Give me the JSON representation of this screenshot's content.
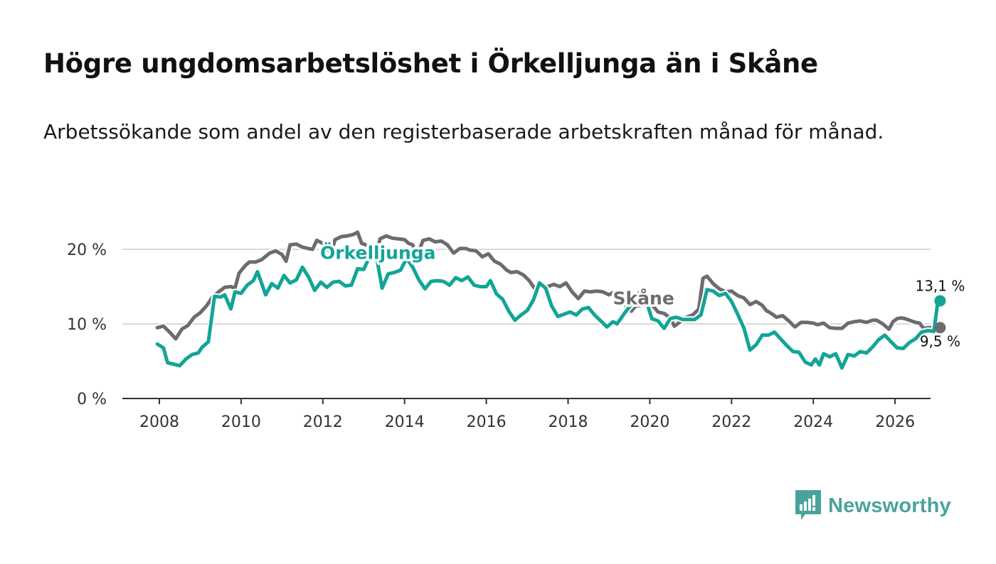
{
  "title": "Högre ungdomsarbetslöshet i Örkelljunga än i Skåne",
  "subtitle": "Arbetssökande som andel av den registerbaserade arbetskraften månad för månad.",
  "brand": {
    "name": "Newsworthy",
    "icon": "newsworthy-logo-icon",
    "color": "#4aa39a"
  },
  "colors": {
    "orkelljunga": "#12a597",
    "skane": "#6d6b6e",
    "grid": "#d9d9d9",
    "axis": "#333333"
  },
  "chart_data": {
    "type": "line",
    "title": "Högre ungdomsarbetslöshet i Örkelljunga än i Skåne",
    "xlabel": "",
    "ylabel": "",
    "xlim": [
      2007.6,
      2026.9
    ],
    "ylim": [
      0,
      22
    ],
    "x_ticks": [
      2008,
      2010,
      2012,
      2014,
      2016,
      2018,
      2020,
      2022,
      2024,
      2026
    ],
    "x_tick_labels": [
      "2008",
      "2010",
      "2012",
      "2014",
      "2016",
      "2018",
      "2020",
      "2022",
      "2024",
      "2026"
    ],
    "y_ticks": [
      0,
      10,
      20
    ],
    "y_tick_labels": [
      "0 %",
      "10 %",
      "20 %"
    ],
    "grid": true,
    "series": [
      {
        "name": "Skåne",
        "label": "Skåne",
        "color": "#6d6b6e",
        "end_label": "9,5 %",
        "points": [
          [
            2007.95,
            9.5
          ],
          [
            2008.1,
            9.7
          ],
          [
            2008.25,
            8.9
          ],
          [
            2008.4,
            8.0
          ],
          [
            2008.55,
            9.3
          ],
          [
            2008.7,
            9.8
          ],
          [
            2008.85,
            10.9
          ],
          [
            2009.0,
            11.5
          ],
          [
            2009.15,
            12.4
          ],
          [
            2009.3,
            13.6
          ],
          [
            2009.45,
            14.3
          ],
          [
            2009.6,
            14.9
          ],
          [
            2009.75,
            15.0
          ],
          [
            2009.85,
            14.8
          ],
          [
            2009.95,
            16.8
          ],
          [
            2010.1,
            17.8
          ],
          [
            2010.2,
            18.3
          ],
          [
            2010.35,
            18.3
          ],
          [
            2010.5,
            18.6
          ],
          [
            2010.7,
            19.5
          ],
          [
            2010.85,
            19.8
          ],
          [
            2011.0,
            19.3
          ],
          [
            2011.1,
            18.4
          ],
          [
            2011.2,
            20.6
          ],
          [
            2011.35,
            20.7
          ],
          [
            2011.5,
            20.3
          ],
          [
            2011.65,
            20.1
          ],
          [
            2011.75,
            20.0
          ],
          [
            2011.85,
            21.2
          ],
          [
            2012.0,
            20.8
          ],
          [
            2012.1,
            20.2
          ],
          [
            2012.2,
            19.5
          ],
          [
            2012.3,
            21.3
          ],
          [
            2012.45,
            21.7
          ],
          [
            2012.6,
            21.8
          ],
          [
            2012.75,
            22.0
          ],
          [
            2012.85,
            22.3
          ],
          [
            2012.95,
            20.8
          ],
          [
            2013.1,
            20.5
          ],
          [
            2013.2,
            19.8
          ],
          [
            2013.3,
            19.2
          ],
          [
            2013.4,
            21.4
          ],
          [
            2013.55,
            21.8
          ],
          [
            2013.7,
            21.5
          ],
          [
            2013.85,
            21.4
          ],
          [
            2014.0,
            21.3
          ],
          [
            2014.1,
            20.8
          ],
          [
            2014.2,
            20.6
          ],
          [
            2014.3,
            19.0
          ],
          [
            2014.45,
            21.2
          ],
          [
            2014.6,
            21.4
          ],
          [
            2014.75,
            21.0
          ],
          [
            2014.9,
            21.1
          ],
          [
            2015.05,
            20.6
          ],
          [
            2015.2,
            19.5
          ],
          [
            2015.35,
            20.1
          ],
          [
            2015.5,
            20.1
          ],
          [
            2015.6,
            19.9
          ],
          [
            2015.75,
            19.8
          ],
          [
            2015.9,
            19.0
          ],
          [
            2016.05,
            19.4
          ],
          [
            2016.2,
            18.4
          ],
          [
            2016.35,
            18.0
          ],
          [
            2016.5,
            17.2
          ],
          [
            2016.6,
            16.9
          ],
          [
            2016.75,
            17.0
          ],
          [
            2016.9,
            16.6
          ],
          [
            2017.05,
            15.8
          ],
          [
            2017.2,
            14.6
          ],
          [
            2017.35,
            15.2
          ],
          [
            2017.5,
            15.0
          ],
          [
            2017.65,
            15.3
          ],
          [
            2017.8,
            15.0
          ],
          [
            2017.95,
            15.5
          ],
          [
            2018.1,
            14.3
          ],
          [
            2018.25,
            13.4
          ],
          [
            2018.4,
            14.4
          ],
          [
            2018.55,
            14.3
          ],
          [
            2018.7,
            14.4
          ],
          [
            2018.85,
            14.3
          ],
          [
            2019.0,
            13.9
          ],
          [
            2019.1,
            14.2
          ],
          [
            2019.25,
            13.3
          ],
          [
            2019.4,
            12.6
          ],
          [
            2019.55,
            11.7
          ],
          [
            2019.65,
            12.4
          ],
          [
            2019.8,
            12.5
          ],
          [
            2019.95,
            12.6
          ],
          [
            2020.1,
            12.3
          ],
          [
            2020.2,
            11.6
          ],
          [
            2020.35,
            11.4
          ],
          [
            2020.5,
            10.8
          ],
          [
            2020.6,
            9.7
          ],
          [
            2020.75,
            10.3
          ],
          [
            2020.9,
            10.9
          ],
          [
            2021.05,
            11.2
          ],
          [
            2021.2,
            12.0
          ],
          [
            2021.3,
            16.1
          ],
          [
            2021.4,
            16.4
          ],
          [
            2021.55,
            15.4
          ],
          [
            2021.7,
            14.7
          ],
          [
            2021.85,
            14.3
          ],
          [
            2022.0,
            14.4
          ],
          [
            2022.15,
            13.8
          ],
          [
            2022.3,
            13.5
          ],
          [
            2022.45,
            12.6
          ],
          [
            2022.6,
            13.0
          ],
          [
            2022.75,
            12.5
          ],
          [
            2022.85,
            11.8
          ],
          [
            2023.0,
            11.3
          ],
          [
            2023.1,
            10.9
          ],
          [
            2023.25,
            11.1
          ],
          [
            2023.4,
            10.4
          ],
          [
            2023.55,
            9.6
          ],
          [
            2023.7,
            10.2
          ],
          [
            2023.85,
            10.2
          ],
          [
            2024.0,
            10.1
          ],
          [
            2024.1,
            9.9
          ],
          [
            2024.25,
            10.1
          ],
          [
            2024.4,
            9.5
          ],
          [
            2024.55,
            9.4
          ],
          [
            2024.7,
            9.4
          ],
          [
            2024.85,
            10.1
          ],
          [
            2025.0,
            10.3
          ],
          [
            2025.15,
            10.4
          ],
          [
            2025.3,
            10.2
          ],
          [
            2025.45,
            10.5
          ],
          [
            2025.55,
            10.5
          ],
          [
            2025.7,
            10.0
          ],
          [
            2025.85,
            9.3
          ],
          [
            2025.95,
            10.3
          ],
          [
            2026.05,
            10.7
          ],
          [
            2026.15,
            10.8
          ],
          [
            2026.25,
            10.7
          ],
          [
            2026.4,
            10.4
          ],
          [
            2026.5,
            10.2
          ],
          [
            2026.6,
            10.1
          ],
          [
            2026.7,
            9.4
          ],
          [
            2026.8,
            9.5
          ],
          [
            2026.9,
            9.5
          ],
          [
            2027.05,
            9.5
          ]
        ]
      },
      {
        "name": "Örkelljunga",
        "label": "Örkelljunga",
        "color": "#12a597",
        "end_label": "13,1 %",
        "points": [
          [
            2007.95,
            7.3
          ],
          [
            2008.1,
            6.8
          ],
          [
            2008.2,
            4.8
          ],
          [
            2008.35,
            4.6
          ],
          [
            2008.5,
            4.4
          ],
          [
            2008.65,
            5.3
          ],
          [
            2008.8,
            5.9
          ],
          [
            2008.95,
            6.1
          ],
          [
            2009.05,
            6.9
          ],
          [
            2009.2,
            7.6
          ],
          [
            2009.35,
            13.7
          ],
          [
            2009.5,
            13.6
          ],
          [
            2009.6,
            13.9
          ],
          [
            2009.75,
            12.0
          ],
          [
            2009.85,
            14.3
          ],
          [
            2010.0,
            14.1
          ],
          [
            2010.15,
            15.2
          ],
          [
            2010.3,
            15.8
          ],
          [
            2010.4,
            17.0
          ],
          [
            2010.5,
            15.5
          ],
          [
            2010.6,
            13.9
          ],
          [
            2010.75,
            15.4
          ],
          [
            2010.9,
            14.8
          ],
          [
            2011.05,
            16.5
          ],
          [
            2011.2,
            15.5
          ],
          [
            2011.35,
            15.9
          ],
          [
            2011.5,
            17.6
          ],
          [
            2011.65,
            16.3
          ],
          [
            2011.8,
            14.5
          ],
          [
            2011.95,
            15.6
          ],
          [
            2012.1,
            14.9
          ],
          [
            2012.25,
            15.6
          ],
          [
            2012.4,
            15.7
          ],
          [
            2012.55,
            15.1
          ],
          [
            2012.7,
            15.2
          ],
          [
            2012.85,
            17.4
          ],
          [
            2013.0,
            17.3
          ],
          [
            2013.15,
            19.1
          ],
          [
            2013.3,
            19.4
          ],
          [
            2013.45,
            14.8
          ],
          [
            2013.6,
            16.7
          ],
          [
            2013.75,
            16.9
          ],
          [
            2013.9,
            17.2
          ],
          [
            2014.05,
            18.8
          ],
          [
            2014.2,
            17.6
          ],
          [
            2014.35,
            15.9
          ],
          [
            2014.5,
            14.7
          ],
          [
            2014.65,
            15.7
          ],
          [
            2014.8,
            15.8
          ],
          [
            2014.95,
            15.7
          ],
          [
            2015.1,
            15.2
          ],
          [
            2015.25,
            16.2
          ],
          [
            2015.4,
            15.8
          ],
          [
            2015.55,
            16.3
          ],
          [
            2015.7,
            15.2
          ],
          [
            2015.85,
            15.0
          ],
          [
            2016.0,
            15.0
          ],
          [
            2016.1,
            15.8
          ],
          [
            2016.25,
            14.0
          ],
          [
            2016.4,
            13.3
          ],
          [
            2016.55,
            11.7
          ],
          [
            2016.7,
            10.5
          ],
          [
            2016.85,
            11.2
          ],
          [
            2017.0,
            11.8
          ],
          [
            2017.15,
            13.2
          ],
          [
            2017.3,
            15.5
          ],
          [
            2017.45,
            14.8
          ],
          [
            2017.6,
            12.4
          ],
          [
            2017.75,
            11.0
          ],
          [
            2017.9,
            11.3
          ],
          [
            2018.05,
            11.6
          ],
          [
            2018.2,
            11.2
          ],
          [
            2018.35,
            12.0
          ],
          [
            2018.5,
            12.2
          ],
          [
            2018.65,
            11.2
          ],
          [
            2018.8,
            10.4
          ],
          [
            2018.95,
            9.6
          ],
          [
            2019.1,
            10.3
          ],
          [
            2019.2,
            10.0
          ],
          [
            2019.35,
            11.2
          ],
          [
            2019.5,
            12.3
          ],
          [
            2019.6,
            12.8
          ],
          [
            2019.75,
            14.3
          ],
          [
            2019.9,
            13.3
          ],
          [
            2020.05,
            10.7
          ],
          [
            2020.2,
            10.4
          ],
          [
            2020.35,
            9.4
          ],
          [
            2020.5,
            10.7
          ],
          [
            2020.65,
            10.9
          ],
          [
            2020.8,
            10.6
          ],
          [
            2020.95,
            10.6
          ],
          [
            2021.1,
            10.6
          ],
          [
            2021.25,
            11.2
          ],
          [
            2021.4,
            14.6
          ],
          [
            2021.55,
            14.4
          ],
          [
            2021.7,
            13.8
          ],
          [
            2021.85,
            14.1
          ],
          [
            2022.0,
            13.0
          ],
          [
            2022.15,
            11.3
          ],
          [
            2022.3,
            9.5
          ],
          [
            2022.45,
            6.5
          ],
          [
            2022.6,
            7.2
          ],
          [
            2022.75,
            8.5
          ],
          [
            2022.9,
            8.5
          ],
          [
            2023.05,
            8.9
          ],
          [
            2023.2,
            8.0
          ],
          [
            2023.35,
            7.1
          ],
          [
            2023.5,
            6.3
          ],
          [
            2023.65,
            6.2
          ],
          [
            2023.8,
            4.9
          ],
          [
            2023.95,
            4.5
          ],
          [
            2024.05,
            5.3
          ],
          [
            2024.15,
            4.5
          ],
          [
            2024.25,
            6.0
          ],
          [
            2024.4,
            5.6
          ],
          [
            2024.55,
            6.0
          ],
          [
            2024.7,
            4.1
          ],
          [
            2024.85,
            5.9
          ],
          [
            2025.0,
            5.7
          ],
          [
            2025.15,
            6.3
          ],
          [
            2025.3,
            6.1
          ],
          [
            2025.45,
            6.9
          ],
          [
            2025.6,
            7.9
          ],
          [
            2025.75,
            8.5
          ],
          [
            2025.9,
            7.6
          ],
          [
            2026.05,
            6.8
          ],
          [
            2026.2,
            6.7
          ],
          [
            2026.35,
            7.5
          ],
          [
            2026.5,
            8.0
          ],
          [
            2026.65,
            8.9
          ],
          [
            2026.8,
            9.1
          ],
          [
            2026.95,
            9.0
          ],
          [
            2027.05,
            13.1
          ]
        ]
      }
    ],
    "annotations": [
      {
        "text": "Örkelljunga",
        "series": "Örkelljunga",
        "x": 2013.0,
        "y": 18.7
      },
      {
        "text": "Skåne",
        "series": "Skåne",
        "x": 2019.5,
        "y": 12.6
      }
    ]
  }
}
